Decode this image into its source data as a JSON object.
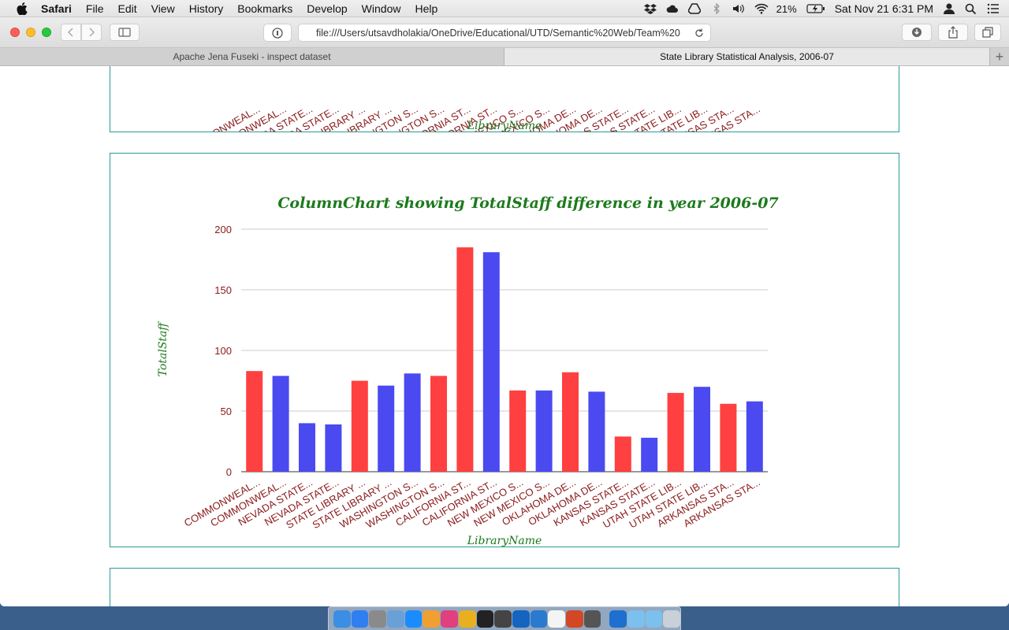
{
  "menubar": {
    "app": "Safari",
    "items": [
      "File",
      "Edit",
      "View",
      "History",
      "Bookmarks",
      "Develop",
      "Window",
      "Help"
    ],
    "battery": "21%",
    "datetime": "Sat Nov 21  6:31 PM"
  },
  "toolbar": {
    "url": "file:///Users/utsavdholakia/OneDrive/Educational/UTD/Semantic%20Web/Team%20"
  },
  "tabs": [
    {
      "label": "Apache Jena Fuseki - inspect dataset",
      "active": false
    },
    {
      "label": "State Library Statistical Analysis, 2006-07",
      "active": true
    }
  ],
  "colors": {
    "red": "#ff4040",
    "blue": "#4a4af0",
    "title": "#1c7a1c",
    "tick": "#8b1a1a",
    "panel_border": "#2a9a9a"
  },
  "top_panel": {
    "xlabel": "LibraryName"
  },
  "chart_data": {
    "type": "bar",
    "title": "ColumnChart showing TotalStaff difference in year 2006-07",
    "xlabel": "LibraryName",
    "ylabel": "TotalStaff",
    "ylim": [
      0,
      200
    ],
    "yticks": [
      0,
      50,
      100,
      150,
      200
    ],
    "grid": true,
    "categories": [
      "COMMONWEAL...",
      "COMMONWEAL...",
      "NEVADA STATE...",
      "NEVADA STATE...",
      "STATE LIBRARY ...",
      "STATE LIBRARY ...",
      "WASHINGTON S...",
      "WASHINGTON S...",
      "CALIFORNIA ST...",
      "CALIFORNIA ST...",
      "NEW MEXICO S...",
      "NEW MEXICO S...",
      "OKLAHOMA DE...",
      "OKLAHOMA DE...",
      "KANSAS STATE...",
      "KANSAS STATE...",
      "UTAH STATE LIB...",
      "UTAH STATE LIB...",
      "ARKANSAS STA...",
      "ARKANSAS STA..."
    ],
    "values": [
      83,
      79,
      40,
      39,
      75,
      71,
      81,
      79,
      185,
      181,
      67,
      67,
      82,
      66,
      29,
      28,
      65,
      70,
      56,
      58
    ],
    "bar_colors": [
      "red",
      "blue",
      "blue",
      "blue",
      "red",
      "blue",
      "blue",
      "red",
      "red",
      "blue",
      "red",
      "blue",
      "red",
      "blue",
      "red",
      "blue",
      "red",
      "blue",
      "red",
      "blue"
    ]
  },
  "dock": {
    "icons": [
      "finder-icon",
      "app-store-icon",
      "system-preferences-icon",
      "preview-icon",
      "safari-icon",
      "photos-icon",
      "itunes-icon",
      "chrome-icon",
      "terminal-icon",
      "sublime-icon",
      "outlook-icon",
      "browser-icon",
      "notes-icon",
      "powerpoint-icon",
      "dvd-icon",
      "onepassword-icon",
      "folder-icon",
      "folder-icon",
      "trash-icon"
    ]
  }
}
